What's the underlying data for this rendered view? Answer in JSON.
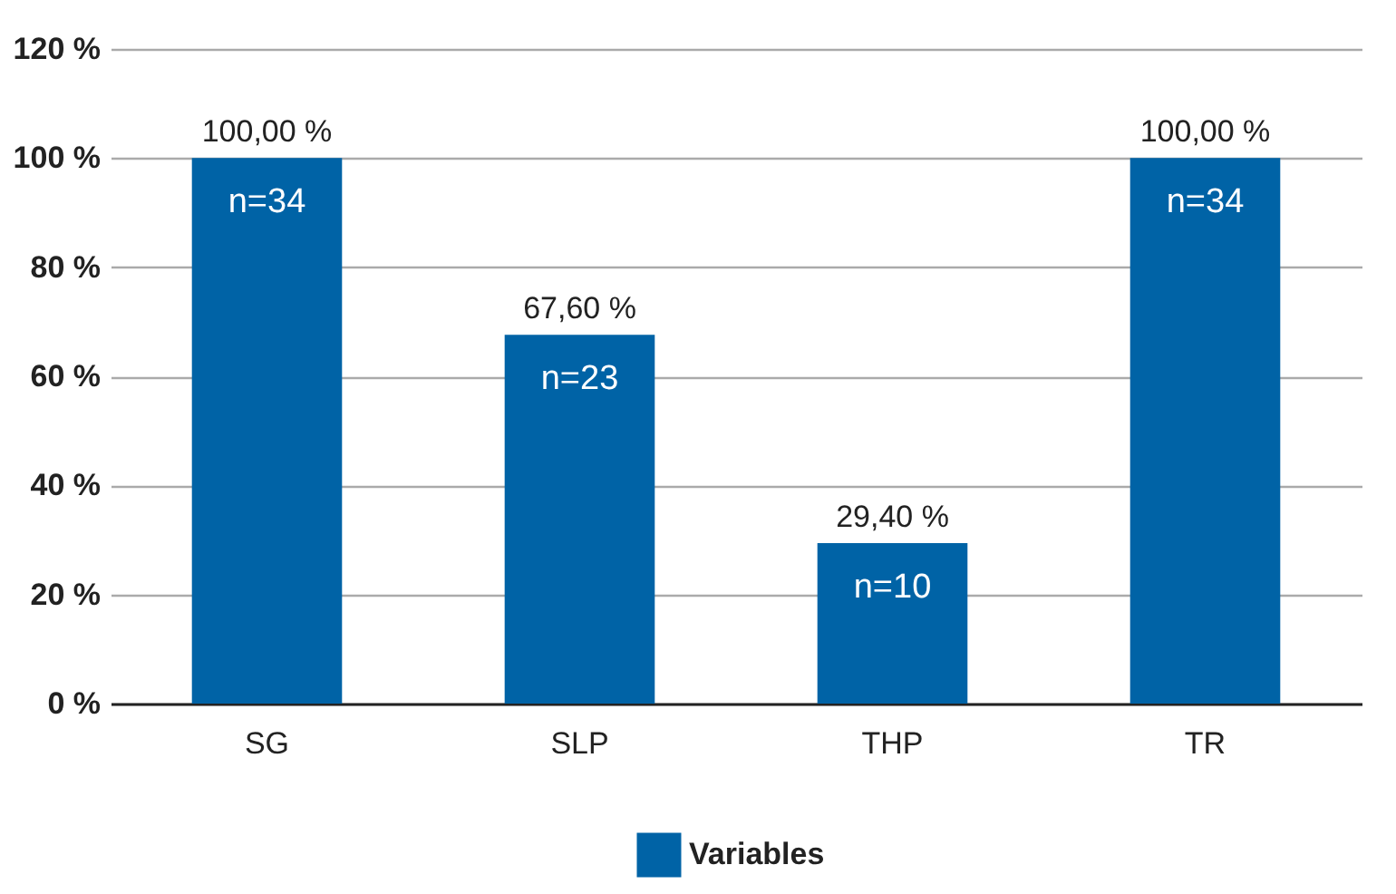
{
  "chart_data": {
    "type": "bar",
    "categories": [
      "SG",
      "SLP",
      "THP",
      "TR"
    ],
    "series": [
      {
        "name": "Variables",
        "color": "#0063a6",
        "values": [
          100,
          67.6,
          29.4,
          100
        ],
        "value_labels": [
          "100,00 %",
          "67,60 %",
          "29,40 %",
          "100,00 %"
        ]
      }
    ],
    "ylim": [
      0,
      120
    ],
    "yticks": [
      {
        "value": 0,
        "label": "0 %"
      },
      {
        "value": 20,
        "label": "20 %"
      },
      {
        "value": 40,
        "label": "40 %"
      },
      {
        "value": 60,
        "label": "60 %"
      },
      {
        "value": 80,
        "label": "80 %"
      },
      {
        "value": 100,
        "label": "100 %"
      },
      {
        "value": 120,
        "label": "120 %"
      }
    ],
    "annotations": [
      "n=34",
      "n=23",
      "n=10",
      "n=34"
    ],
    "grid": "y",
    "legend": "bottom"
  }
}
